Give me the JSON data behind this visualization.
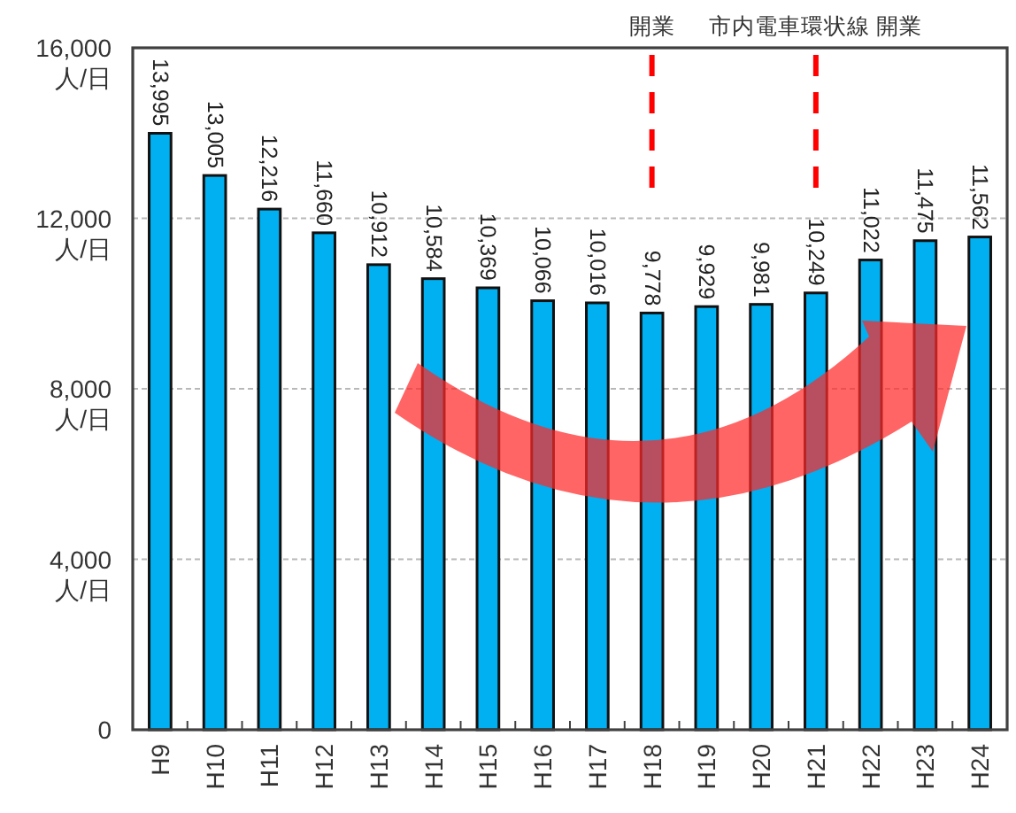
{
  "chart_data": {
    "type": "bar",
    "categories": [
      "H9",
      "H10",
      "H11",
      "H12",
      "H13",
      "H14",
      "H15",
      "H16",
      "H17",
      "H18",
      "H19",
      "H20",
      "H21",
      "H22",
      "H23",
      "H24"
    ],
    "values": [
      13995,
      13005,
      12216,
      11660,
      10912,
      10584,
      10369,
      10066,
      10016,
      9778,
      9929,
      9981,
      10249,
      11022,
      11475,
      11562
    ],
    "value_labels": [
      "13,995",
      "13,005",
      "12,216",
      "11,660",
      "10,912",
      "10,584",
      "10,369",
      "10,066",
      "10,016",
      "9,778",
      "9,929",
      "9,981",
      "10,249",
      "11,022",
      "11,475",
      "11,562"
    ],
    "color": "#00b0f0",
    "ylim": [
      0,
      16000
    ],
    "yticks": [
      0,
      {
        "value": 4000,
        "label": "4,000\n人/日"
      },
      {
        "value": 8000,
        "label": "8,000\n人/日"
      },
      {
        "value": 12000,
        "label": "12,000\n人/日"
      },
      {
        "value": 16000,
        "label": "16,000\n人/日"
      }
    ],
    "grid": "y",
    "ref_lines": [
      {
        "axis": "x",
        "value": "H18",
        "label": "開業",
        "color": "#ff0000",
        "line_style": "dashed"
      },
      {
        "axis": "x",
        "value": "H21",
        "label": "市内電車環状線 開業",
        "color": "#ff0000",
        "line_style": "dashed"
      }
    ]
  }
}
